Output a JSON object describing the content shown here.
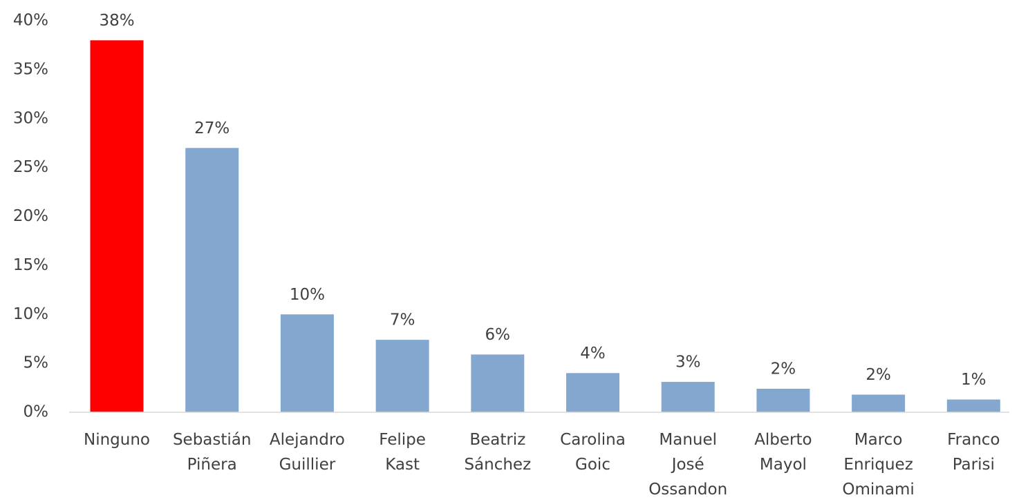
{
  "chart_data": {
    "type": "bar",
    "categories": [
      "Ninguno",
      "Sebastián Piñera",
      "Alejandro Guillier",
      "Felipe Kast",
      "Beatriz Sánchez",
      "Carolina Goic",
      "Manuel José Ossandon",
      "Alberto Mayol",
      "Marco Enriquez Ominami",
      "Franco Parisi"
    ],
    "values": [
      38,
      27,
      10,
      7.4,
      5.9,
      4,
      3.1,
      2.4,
      1.8,
      1.3
    ],
    "value_labels": [
      "38%",
      "27%",
      "10%",
      "7%",
      "6%",
      "4%",
      "3%",
      "2%",
      "2%",
      "1%"
    ],
    "colors": [
      "#ff0000",
      "#84a7cf",
      "#84a7cf",
      "#84a7cf",
      "#84a7cf",
      "#84a7cf",
      "#84a7cf",
      "#84a7cf",
      "#84a7cf",
      "#84a7cf"
    ],
    "ylim": [
      0,
      40
    ],
    "yticks": [
      {
        "value": 0,
        "label": "0%"
      },
      {
        "value": 5,
        "label": "5%"
      },
      {
        "value": 10,
        "label": "10%"
      },
      {
        "value": 15,
        "label": "15%"
      },
      {
        "value": 20,
        "label": "20%"
      },
      {
        "value": 25,
        "label": "25%"
      },
      {
        "value": 30,
        "label": "30%"
      },
      {
        "value": 35,
        "label": "35%"
      },
      {
        "value": 40,
        "label": "40%"
      }
    ],
    "grid": false
  }
}
